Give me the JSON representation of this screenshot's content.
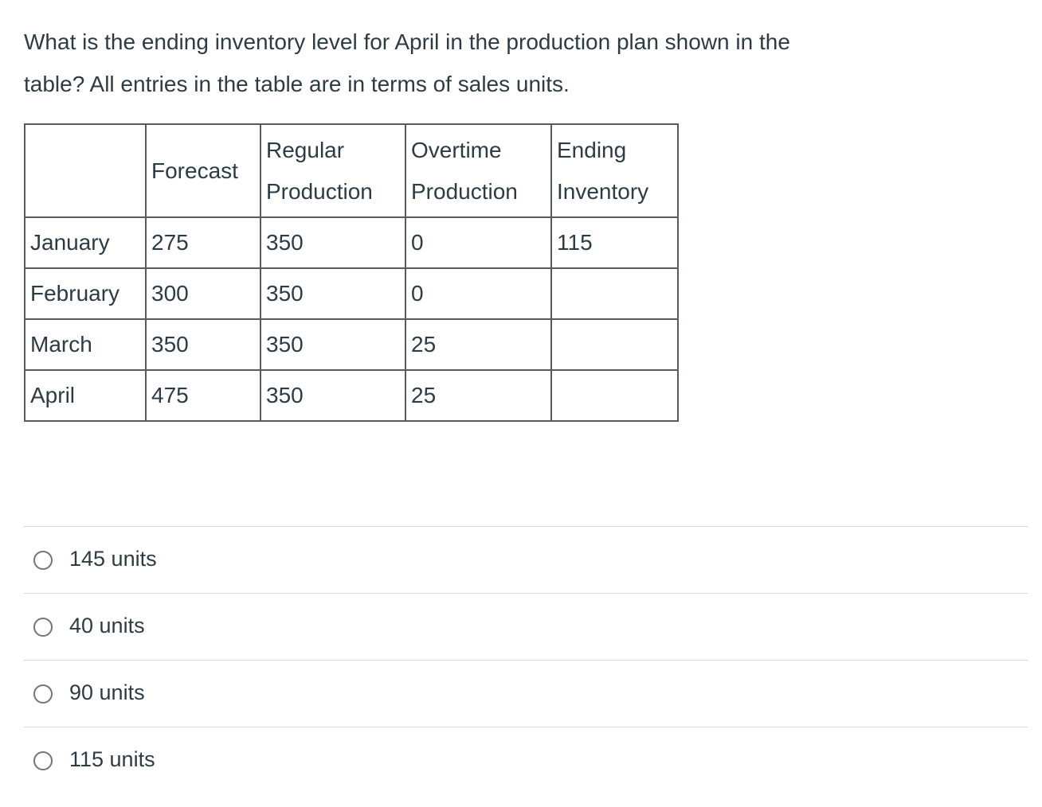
{
  "question": {
    "full_text": "What is the ending inventory level for April in the production plan shown in the table? All entries in the table are in terms of sales units.",
    "lines": [
      "What is the ending inventory level for April in the production plan shown in the",
      "table? All entries in the table are in terms of sales units."
    ]
  },
  "table": {
    "headers": [
      "",
      "Forecast",
      "Regular Production",
      "Overtime Production",
      "Ending Inventory"
    ],
    "rows": [
      {
        "month": "January",
        "forecast": "275",
        "regular_production": "350",
        "overtime_production": "0",
        "ending_inventory": "115"
      },
      {
        "month": "February",
        "forecast": "300",
        "regular_production": "350",
        "overtime_production": "0",
        "ending_inventory": ""
      },
      {
        "month": "March",
        "forecast": "350",
        "regular_production": "350",
        "overtime_production": "25",
        "ending_inventory": ""
      },
      {
        "month": "April",
        "forecast": "475",
        "regular_production": "350",
        "overtime_production": "25",
        "ending_inventory": ""
      }
    ]
  },
  "options": [
    {
      "label": "145 units",
      "selected": false
    },
    {
      "label": "40 units",
      "selected": false
    },
    {
      "label": "90 units",
      "selected": false
    },
    {
      "label": "115 units",
      "selected": false
    }
  ],
  "colors": {
    "background": "#ffffff",
    "text": "#2d3b45",
    "table_border": "#575a5e",
    "option_divider": "#dcdcdc",
    "radio_border": "#6e757c"
  }
}
